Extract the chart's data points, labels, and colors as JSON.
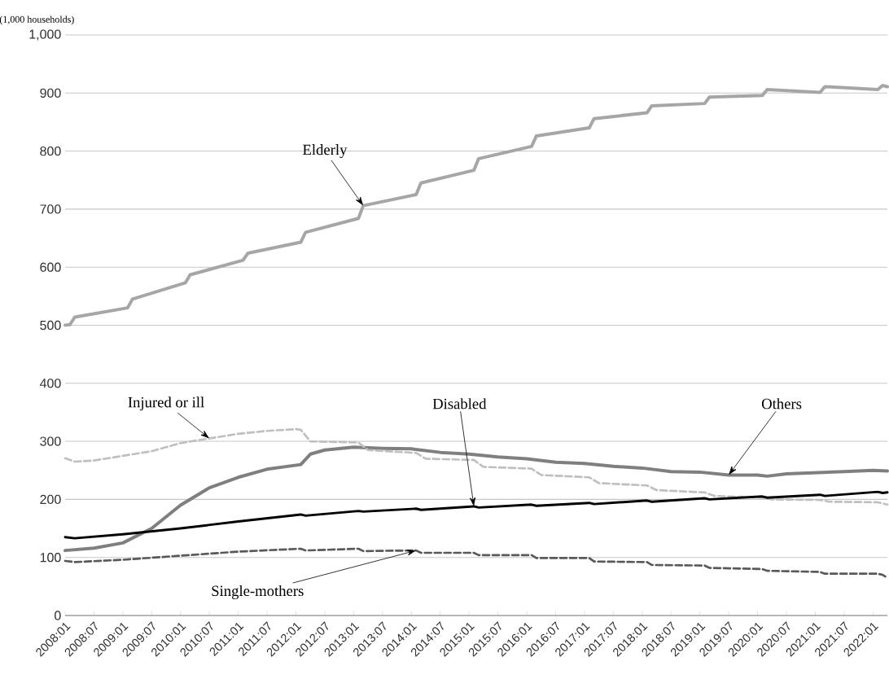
{
  "chart_data": {
    "type": "line",
    "ylabel": "(1,000 households)",
    "xlim": [
      "2008-01",
      "2022-04"
    ],
    "ylim": [
      0,
      1000
    ],
    "yticks": [
      0,
      100,
      200,
      300,
      400,
      500,
      600,
      700,
      800,
      900,
      {
        "value": 1000,
        "label": "1,000"
      }
    ],
    "xticks": [
      {
        "value": "2008-01",
        "label": "2008:01"
      },
      {
        "value": "2008-07",
        "label": "2008:07"
      },
      {
        "value": "2009-01",
        "label": "2009:01"
      },
      {
        "value": "2009-07",
        "label": "2009:07"
      },
      {
        "value": "2010-01",
        "label": "2010:01"
      },
      {
        "value": "2010-07",
        "label": "2010:07"
      },
      {
        "value": "2011-01",
        "label": "2011:01"
      },
      {
        "value": "2011-07",
        "label": "2011:07"
      },
      {
        "value": "2012-01",
        "label": "2012:01"
      },
      {
        "value": "2012-07",
        "label": "2012:07"
      },
      {
        "value": "2013-01",
        "label": "2013:01"
      },
      {
        "value": "2013-07",
        "label": "2013:07"
      },
      {
        "value": "2014-01",
        "label": "2014:01"
      },
      {
        "value": "2014-07",
        "label": "2014:07"
      },
      {
        "value": "2015-01",
        "label": "2015:01"
      },
      {
        "value": "2015-07",
        "label": "2015:07"
      },
      {
        "value": "2016-01",
        "label": "2016:01"
      },
      {
        "value": "2016-07",
        "label": "2016:07"
      },
      {
        "value": "2017-01",
        "label": "2017:01"
      },
      {
        "value": "2017-07",
        "label": "2017:07"
      },
      {
        "value": "2018-01",
        "label": "2018:01"
      },
      {
        "value": "2018-07",
        "label": "2018:07"
      },
      {
        "value": "2019-01",
        "label": "2019:01"
      },
      {
        "value": "2019-07",
        "label": "2019:07"
      },
      {
        "value": "2020-01",
        "label": "2020:01"
      },
      {
        "value": "2020-07",
        "label": "2020:07"
      },
      {
        "value": "2021-01",
        "label": "2021:01"
      },
      {
        "value": "2021-07",
        "label": "2021:07"
      },
      {
        "value": "2022-01",
        "label": "2022:01"
      }
    ],
    "grid": "y",
    "series": [
      {
        "color": "#a6a6a6",
        "line_style": "solid",
        "x": [
          "2008-01",
          "2008-02",
          "2008-03",
          "2009-02",
          "2009-03",
          "2010-02",
          "2010-03",
          "2011-02",
          "2011-03",
          "2012-02",
          "2012-03",
          "2013-02",
          "2013-03",
          "2014-02",
          "2014-03",
          "2015-02",
          "2015-03",
          "2016-02",
          "2016-03",
          "2017-02",
          "2017-03",
          "2018-02",
          "2018-03",
          "2019-02",
          "2019-03",
          "2020-02",
          "2020-03",
          "2021-02",
          "2021-03",
          "2022-02",
          "2022-03",
          "2022-04"
        ],
        "values": [
          500,
          501,
          514,
          530,
          545,
          573,
          587,
          612,
          624,
          643,
          660,
          684,
          706,
          725,
          745,
          767,
          787,
          808,
          826,
          840,
          856,
          866,
          878,
          882,
          893,
          896,
          906,
          901,
          911,
          906,
          913,
          911
        ]
      },
      {
        "color": "#7f7f7f",
        "line_style": "solid",
        "x": [
          "2008-01",
          "2008-07",
          "2009-01",
          "2009-07",
          "2010-01",
          "2010-07",
          "2011-01",
          "2011-07",
          "2012-02",
          "2012-04",
          "2012-07",
          "2013-01",
          "2013-07",
          "2014-01",
          "2014-07",
          "2015-01",
          "2015-07",
          "2016-01",
          "2016-07",
          "2017-01",
          "2017-07",
          "2018-01",
          "2018-07",
          "2019-01",
          "2019-07",
          "2020-01",
          "2020-03",
          "2020-07",
          "2021-01",
          "2021-07",
          "2022-01",
          "2022-04"
        ],
        "values": [
          112,
          116,
          125,
          150,
          190,
          220,
          238,
          252,
          260,
          278,
          285,
          290,
          288,
          287,
          281,
          278,
          273,
          270,
          264,
          262,
          257,
          254,
          248,
          247,
          242,
          242,
          240,
          244,
          246,
          248,
          250,
          249
        ]
      },
      {
        "color": "#bfbfbf",
        "line_style": "dashed",
        "x": [
          "2008-01",
          "2008-03",
          "2008-07",
          "2009-01",
          "2009-07",
          "2010-01",
          "2010-07",
          "2011-01",
          "2011-07",
          "2012-01",
          "2012-02",
          "2012-04",
          "2013-02",
          "2013-04",
          "2014-02",
          "2014-04",
          "2015-02",
          "2015-04",
          "2016-02",
          "2016-04",
          "2017-02",
          "2017-04",
          "2018-02",
          "2018-04",
          "2019-02",
          "2019-04",
          "2020-02",
          "2020-04",
          "2021-02",
          "2021-04",
          "2022-02",
          "2022-04"
        ],
        "values": [
          271,
          265,
          267,
          275,
          283,
          297,
          305,
          313,
          318,
          321,
          320,
          300,
          298,
          285,
          280,
          270,
          268,
          256,
          253,
          242,
          238,
          228,
          224,
          216,
          212,
          206,
          203,
          200,
          199,
          196,
          195,
          191
        ]
      },
      {
        "color": "#000000",
        "line_style": "solid",
        "x": [
          "2008-01",
          "2008-03",
          "2009-01",
          "2010-01",
          "2011-01",
          "2012-02",
          "2012-03",
          "2013-02",
          "2013-03",
          "2014-02",
          "2014-03",
          "2015-02",
          "2015-03",
          "2016-02",
          "2016-03",
          "2017-02",
          "2017-03",
          "2018-02",
          "2018-03",
          "2019-02",
          "2019-03",
          "2020-02",
          "2020-03",
          "2021-02",
          "2021-03",
          "2022-02",
          "2022-03",
          "2022-04"
        ],
        "values": [
          135,
          133,
          140,
          150,
          162,
          174,
          172,
          180,
          179,
          184,
          182,
          188,
          186,
          191,
          189,
          194,
          192,
          198,
          196,
          202,
          200,
          205,
          203,
          208,
          206,
          213,
          211,
          212
        ]
      },
      {
        "color": "#595959",
        "line_style": "dashed",
        "x": [
          "2008-01",
          "2008-03",
          "2009-01",
          "2010-01",
          "2011-01",
          "2012-02",
          "2012-03",
          "2013-02",
          "2013-03",
          "2014-02",
          "2014-03",
          "2015-02",
          "2015-03",
          "2016-02",
          "2016-03",
          "2017-02",
          "2017-03",
          "2018-02",
          "2018-03",
          "2019-02",
          "2019-03",
          "2020-02",
          "2020-03",
          "2021-02",
          "2021-03",
          "2022-02",
          "2022-03",
          "2022-04"
        ],
        "values": [
          94,
          92,
          96,
          103,
          110,
          115,
          112,
          115,
          111,
          112,
          108,
          108,
          104,
          104,
          99,
          99,
          93,
          92,
          87,
          86,
          82,
          80,
          77,
          75,
          72,
          72,
          70,
          65
        ]
      }
    ],
    "annotations": [
      {
        "text": "Elderly",
        "x": "2013-03",
        "y": 706
      },
      {
        "text": "Injured or ill",
        "x": "2010-07",
        "y": 305
      },
      {
        "text": "Disabled",
        "x": "2015-02",
        "y": 188
      },
      {
        "text": "Others",
        "x": "2019-07",
        "y": 242
      },
      {
        "text": "Single-mothers",
        "x": "2014-02",
        "y": 112
      }
    ]
  }
}
